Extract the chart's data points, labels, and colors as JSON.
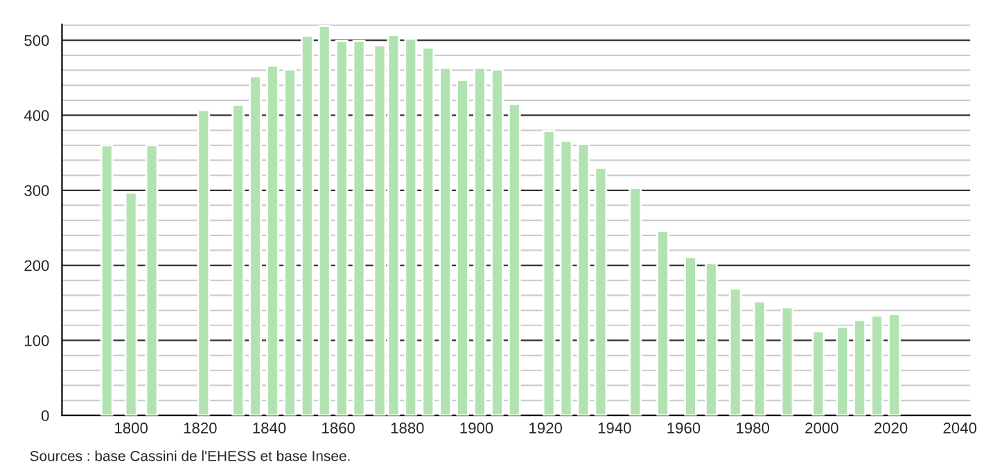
{
  "chart_data": {
    "type": "bar",
    "x": [
      1793,
      1800,
      1806,
      1821,
      1831,
      1836,
      1841,
      1846,
      1851,
      1856,
      1861,
      1866,
      1872,
      1876,
      1881,
      1886,
      1891,
      1896,
      1901,
      1906,
      1911,
      1921,
      1926,
      1931,
      1936,
      1946,
      1954,
      1962,
      1968,
      1975,
      1982,
      1990,
      1999,
      2006,
      2011,
      2016,
      2021
    ],
    "values": [
      360,
      297,
      360,
      407,
      414,
      452,
      466,
      461,
      506,
      519,
      499,
      499,
      493,
      507,
      502,
      490,
      463,
      447,
      463,
      461,
      415,
      379,
      366,
      362,
      330,
      303,
      246,
      211,
      203,
      169,
      152,
      144,
      112,
      118,
      127,
      133,
      135
    ],
    "color": "#b0e3b0",
    "xlim": [
      1780,
      2043
    ],
    "xticks": [
      1800,
      1820,
      1840,
      1860,
      1880,
      1900,
      1920,
      1940,
      1960,
      1980,
      2000,
      2020,
      2040
    ],
    "ylim": [
      0,
      521
    ],
    "yticks": [
      0,
      100,
      200,
      300,
      400,
      500
    ],
    "grid": "y",
    "legend": false,
    "annotations": [
      "Sources : base Cassini de l'EHESS et base Insee."
    ]
  }
}
